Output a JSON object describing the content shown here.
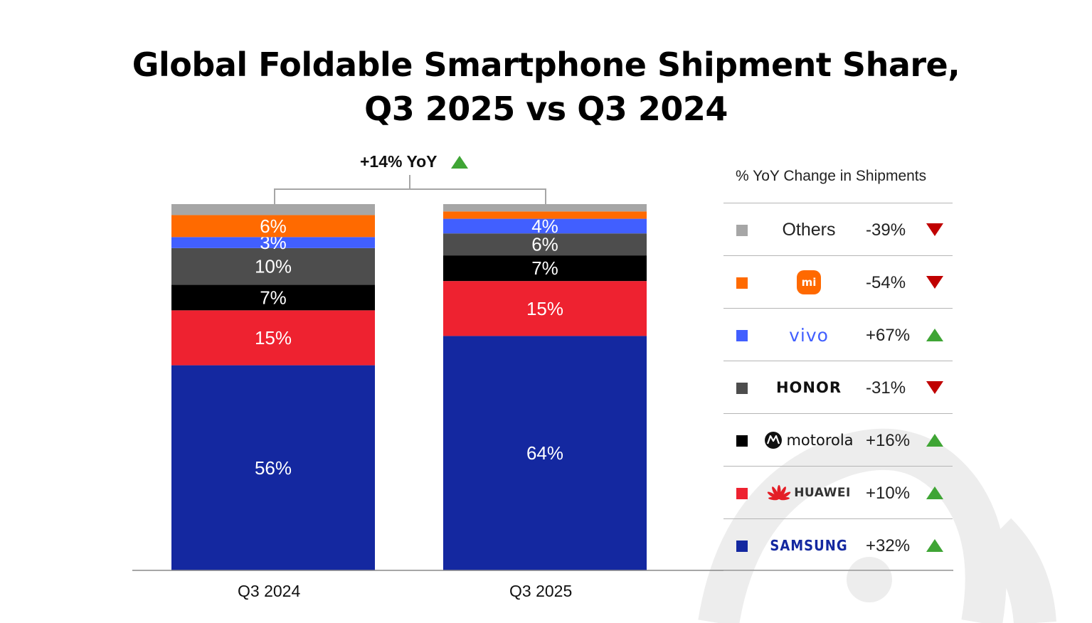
{
  "title": {
    "line1": "Global Foldable Smartphone Shipment Share,",
    "line2": "Q3 2025 vs Q3 2024"
  },
  "yoy": {
    "label": "+14% YoY",
    "direction": "up"
  },
  "legend": {
    "header": "% YoY Change in Shipments",
    "items": [
      {
        "brand": "Others",
        "change": "-39%",
        "direction": "down",
        "color": "#a6a6a6"
      },
      {
        "brand": "mi",
        "change": "-54%",
        "direction": "down",
        "color": "#ff6a00"
      },
      {
        "brand": "vivo",
        "change": "+67%",
        "direction": "up",
        "color": "#415fff"
      },
      {
        "brand": "HONOR",
        "change": "-31%",
        "direction": "down",
        "color": "#4d4d4d"
      },
      {
        "brand": "motorola",
        "change": "+16%",
        "direction": "up",
        "color": "#000000"
      },
      {
        "brand": "HUAWEI",
        "change": "+10%",
        "direction": "up",
        "color": "#ee2230"
      },
      {
        "brand": "SAMSUNG",
        "change": "+32%",
        "direction": "up",
        "color": "#1428a0"
      }
    ]
  },
  "colors": {
    "up": "#3fa535",
    "down": "#c00000"
  },
  "chart_data": {
    "type": "bar",
    "stacked": true,
    "categories": [
      "Q3 2024",
      "Q3 2025"
    ],
    "series": [
      {
        "name": "SAMSUNG",
        "color": "#1428a0",
        "values": [
          56,
          64
        ],
        "labels": [
          "56%",
          "64%"
        ]
      },
      {
        "name": "HUAWEI",
        "color": "#ee2230",
        "values": [
          15,
          15
        ],
        "labels": [
          "15%",
          "15%"
        ]
      },
      {
        "name": "motorola",
        "color": "#000000",
        "values": [
          7,
          7
        ],
        "labels": [
          "7%",
          "7%"
        ]
      },
      {
        "name": "HONOR",
        "color": "#4d4d4d",
        "values": [
          10,
          6
        ],
        "labels": [
          "10%",
          "6%"
        ]
      },
      {
        "name": "vivo",
        "color": "#415fff",
        "values": [
          3,
          4
        ],
        "labels": [
          "3%",
          "4%"
        ]
      },
      {
        "name": "mi",
        "color": "#ff6a00",
        "values": [
          6,
          2
        ],
        "labels": [
          "6%",
          ""
        ]
      },
      {
        "name": "Others",
        "color": "#a6a6a6",
        "values": [
          3,
          2
        ],
        "labels": [
          "",
          ""
        ]
      }
    ],
    "ylim": [
      0,
      100
    ]
  }
}
